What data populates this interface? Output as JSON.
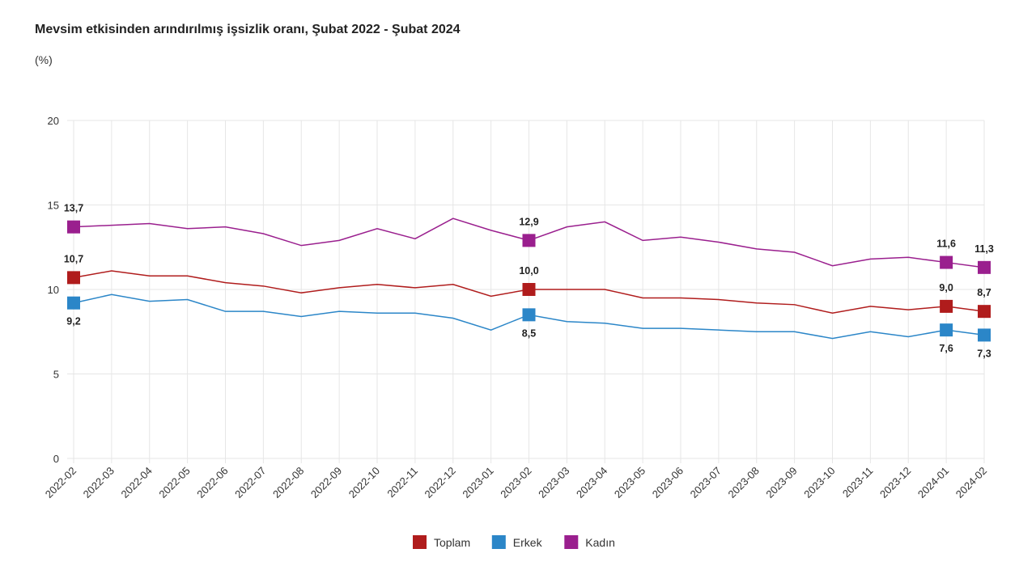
{
  "chart_data": {
    "type": "line",
    "title": "Mevsim etkisinden arındırılmış işsizlik oranı, Şubat 2022 - Şubat 2024",
    "ylabel": "(%)",
    "xlabel": "",
    "ylim": [
      0,
      20
    ],
    "yticks": [
      "0",
      "5",
      "10",
      "15",
      "20"
    ],
    "grid": true,
    "legend_position": "bottom",
    "x": [
      "2022-02",
      "2022-03",
      "2022-04",
      "2022-05",
      "2022-06",
      "2022-07",
      "2022-08",
      "2022-09",
      "2022-10",
      "2022-11",
      "2022-12",
      "2023-01",
      "2023-02",
      "2023-03",
      "2023-04",
      "2023-05",
      "2023-06",
      "2023-07",
      "2023-08",
      "2023-09",
      "2023-10",
      "2023-11",
      "2023-12",
      "2024-01",
      "2024-02"
    ],
    "series": [
      {
        "name": "Toplam",
        "color": "#b01c1c",
        "values": [
          10.7,
          11.1,
          10.8,
          10.8,
          10.4,
          10.2,
          9.8,
          10.1,
          10.3,
          10.1,
          10.3,
          9.6,
          10.0,
          10.0,
          10.0,
          9.5,
          9.5,
          9.4,
          9.2,
          9.1,
          8.6,
          9.0,
          8.8,
          9.0,
          8.7
        ],
        "labels": {
          "0": "10,7",
          "12": "10,0",
          "23": "9,0",
          "24": "8,7"
        }
      },
      {
        "name": "Erkek",
        "color": "#2b86c8",
        "values": [
          9.2,
          9.7,
          9.3,
          9.4,
          8.7,
          8.7,
          8.4,
          8.7,
          8.6,
          8.6,
          8.3,
          7.6,
          8.5,
          8.1,
          8.0,
          7.7,
          7.7,
          7.6,
          7.5,
          7.5,
          7.1,
          7.5,
          7.2,
          7.6,
          7.3
        ],
        "labels": {
          "0": "9,2",
          "12": "8,5",
          "23": "7,6",
          "24": "7,3"
        }
      },
      {
        "name": "Kadın",
        "color": "#9a1f8e",
        "values": [
          13.7,
          13.8,
          13.9,
          13.6,
          13.7,
          13.3,
          12.6,
          12.9,
          13.6,
          13.0,
          14.2,
          13.5,
          12.9,
          13.7,
          14.0,
          12.9,
          13.1,
          12.8,
          12.4,
          12.2,
          11.4,
          11.8,
          11.9,
          11.6,
          11.3
        ],
        "labels": {
          "0": "13,7",
          "12": "12,9",
          "23": "11,6",
          "24": "11,3"
        }
      }
    ]
  }
}
